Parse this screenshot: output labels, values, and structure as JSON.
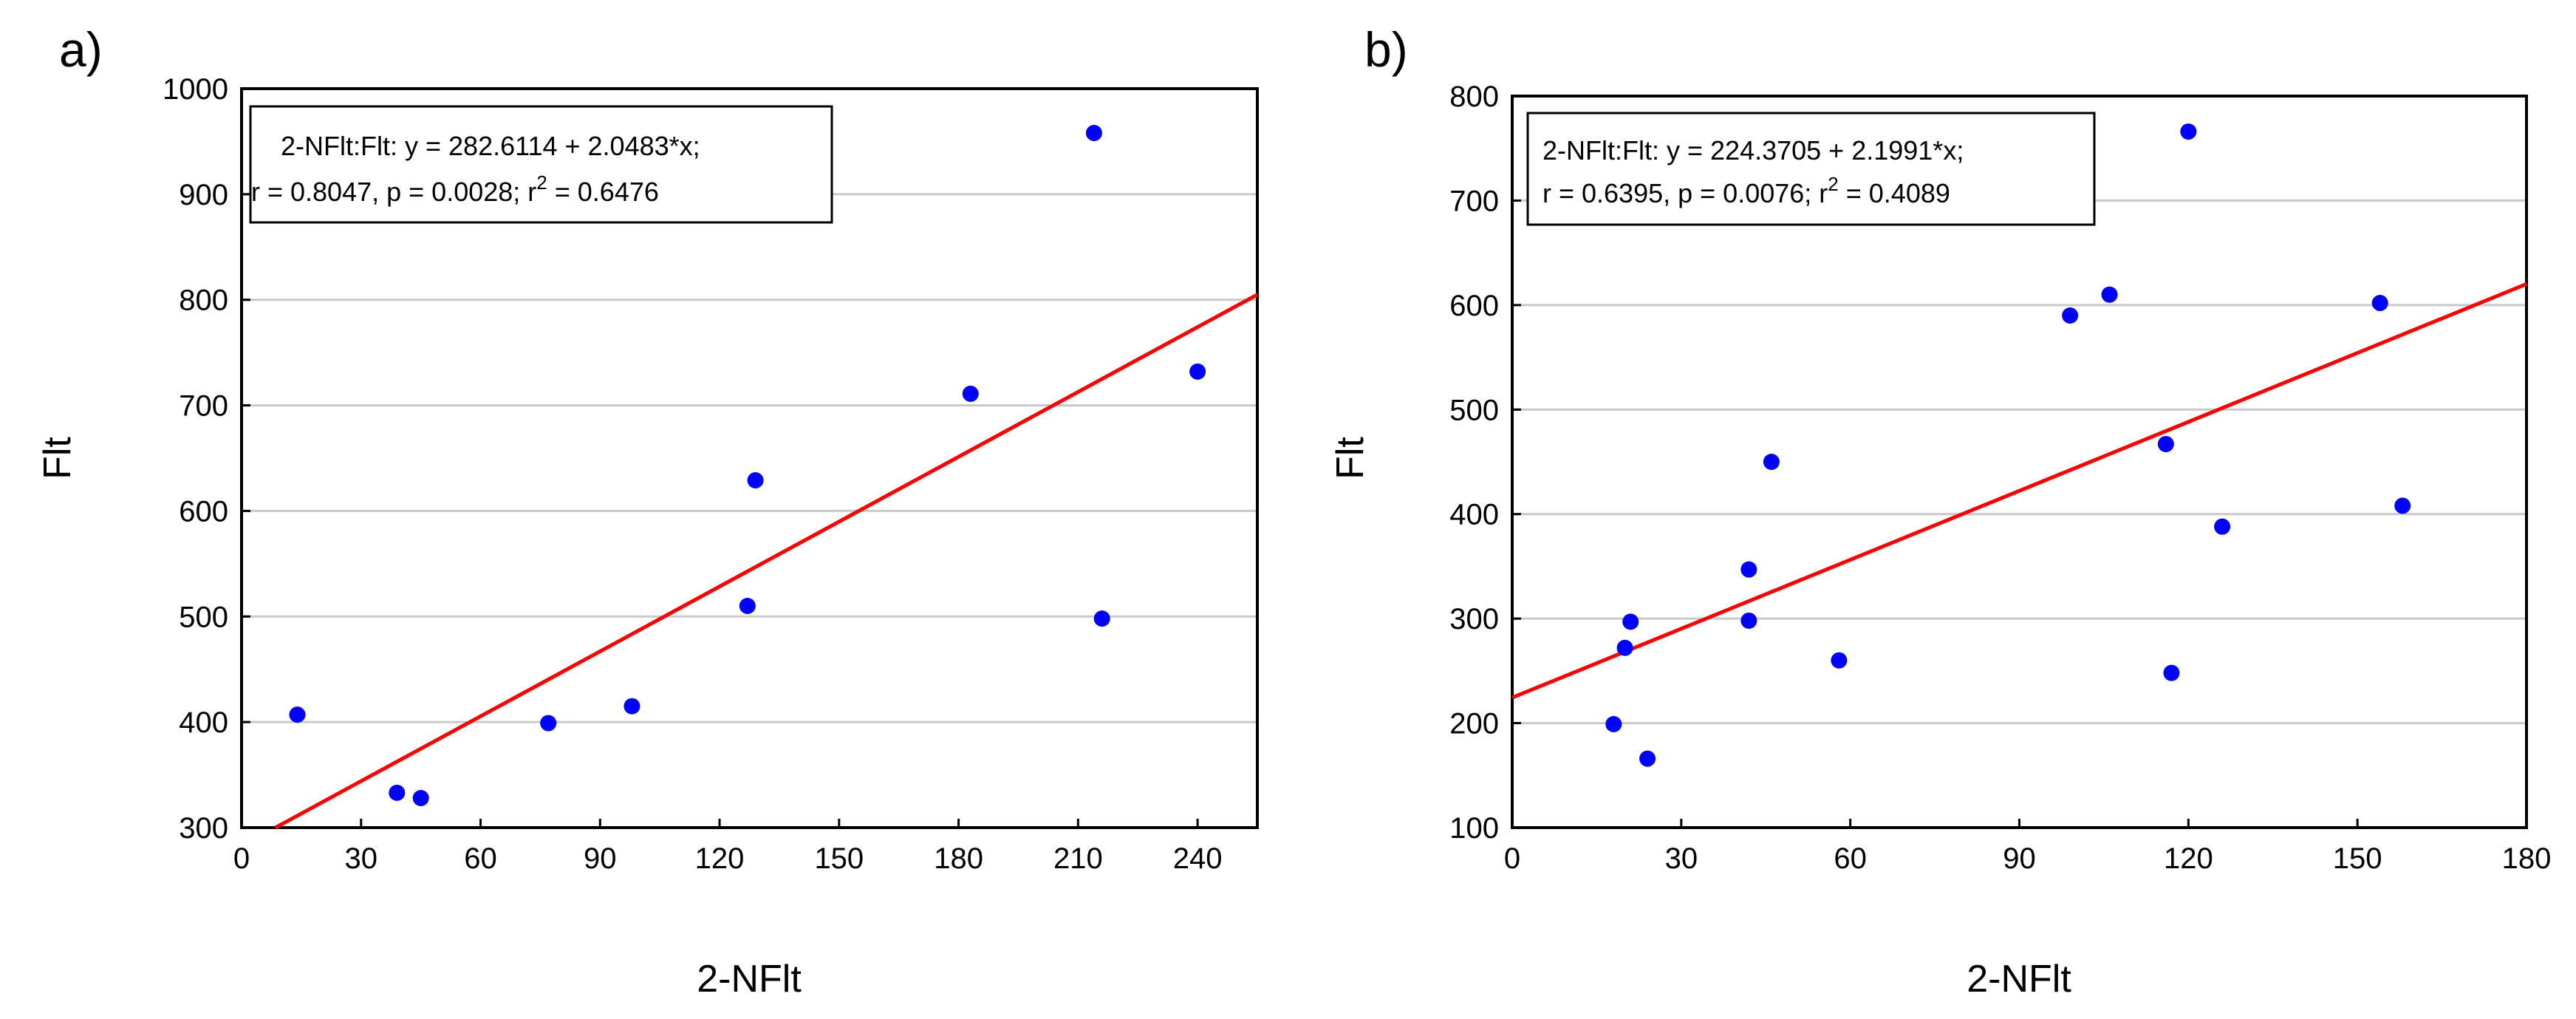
{
  "chart_data": [
    {
      "type": "scatter",
      "panel_label": "a)",
      "xlabel": "2-NFlt",
      "ylabel": "Flt",
      "xlim": [
        0,
        255
      ],
      "ylim": [
        300,
        1000
      ],
      "xticks": [
        0,
        30,
        60,
        90,
        120,
        150,
        180,
        210,
        240
      ],
      "yticks": [
        300,
        400,
        500,
        600,
        700,
        800,
        900,
        1000
      ],
      "grid": true,
      "equation_line1": "2-NFlt:Flt:   y = 282.6114 + 2.0483*x;",
      "equation_line2": {
        "prefix": "r = 0.8047, p = 0.0028; r",
        "sup": "2",
        "suffix": " = 0.6476"
      },
      "fit": {
        "intercept": 282.6114,
        "slope": 2.0483
      },
      "points": [
        {
          "x": 14,
          "y": 407
        },
        {
          "x": 39,
          "y": 333
        },
        {
          "x": 45,
          "y": 328
        },
        {
          "x": 77,
          "y": 399
        },
        {
          "x": 98,
          "y": 415
        },
        {
          "x": 127,
          "y": 510
        },
        {
          "x": 129,
          "y": 629
        },
        {
          "x": 183,
          "y": 711
        },
        {
          "x": 214,
          "y": 958
        },
        {
          "x": 216,
          "y": 498
        },
        {
          "x": 240,
          "y": 732
        }
      ],
      "colors": {
        "points": "#0000ff",
        "fit": "#ff0000"
      }
    },
    {
      "type": "scatter",
      "panel_label": "b)",
      "xlabel": "2-NFlt",
      "ylabel": "Flt",
      "xlim": [
        0,
        180
      ],
      "ylim": [
        100,
        800
      ],
      "xticks": [
        0,
        30,
        60,
        90,
        120,
        150,
        180
      ],
      "yticks": [
        100,
        200,
        300,
        400,
        500,
        600,
        700,
        800
      ],
      "grid": true,
      "equation_line1": "2-NFlt:Flt:   y = 224.3705 + 2.1991*x;",
      "equation_line2": {
        "prefix": "r = 0.6395, p = 0.0076; r",
        "sup": "2",
        "suffix": " = 0.4089"
      },
      "fit": {
        "intercept": 224.3705,
        "slope": 2.1991
      },
      "points": [
        {
          "x": 18,
          "y": 199
        },
        {
          "x": 20,
          "y": 272
        },
        {
          "x": 21,
          "y": 297
        },
        {
          "x": 24,
          "y": 166
        },
        {
          "x": 42,
          "y": 347
        },
        {
          "x": 42,
          "y": 298
        },
        {
          "x": 46,
          "y": 450
        },
        {
          "x": 58,
          "y": 260
        },
        {
          "x": 99,
          "y": 590
        },
        {
          "x": 106,
          "y": 610
        },
        {
          "x": 116,
          "y": 467
        },
        {
          "x": 117,
          "y": 248
        },
        {
          "x": 120,
          "y": 766
        },
        {
          "x": 126,
          "y": 388
        },
        {
          "x": 154,
          "y": 602
        },
        {
          "x": 158,
          "y": 408
        }
      ],
      "colors": {
        "points": "#0000ff",
        "fit": "#ff0000"
      }
    }
  ]
}
